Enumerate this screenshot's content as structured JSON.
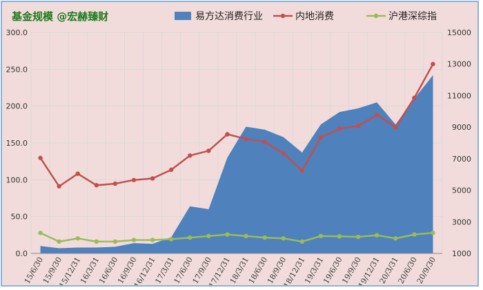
{
  "chart_data": {
    "type": "area",
    "title": "基金规模 @宏赫臻财",
    "x": [
      "15/6/30",
      "15/9/30",
      "15/12/31",
      "16/3/31",
      "16/6/30",
      "16/9/30",
      "16/12/31",
      "17/3/31",
      "17/6/30",
      "17/9/30",
      "17/12/31",
      "18/3/31",
      "18/6/30",
      "18/9/30",
      "18/12/31",
      "19/3/31",
      "19/6/30",
      "19/9/30",
      "19/12/31",
      "20/3/31",
      "20/6/30",
      "20/9/30"
    ],
    "y_left_ticks": [
      "0.0",
      "50.0",
      "100.0",
      "150.0",
      "200.0",
      "250.0",
      "300.0"
    ],
    "y_right_ticks": [
      "1000",
      "3000",
      "5000",
      "7000",
      "9000",
      "11000",
      "13000",
      "15000"
    ],
    "ylim_left": [
      0,
      300
    ],
    "ylim_right": [
      1000,
      15000
    ],
    "grid": true,
    "legend_position": "top",
    "series": [
      {
        "name": "易方达消费行业",
        "type": "area",
        "axis": "left",
        "color": "#4f81bd",
        "values": [
          10,
          7,
          8,
          8,
          9,
          14,
          13,
          22,
          64,
          60,
          130,
          172,
          168,
          158,
          137,
          175,
          192,
          197,
          205,
          175,
          210,
          242
        ]
      },
      {
        "name": "内地消费",
        "type": "line",
        "axis": "right",
        "color": "#c0504d",
        "values": [
          7050,
          5250,
          6050,
          5320,
          5420,
          5650,
          5750,
          6300,
          7200,
          7500,
          8550,
          8250,
          8070,
          7350,
          6250,
          8350,
          8900,
          9080,
          9770,
          9000,
          10850,
          13000
        ]
      },
      {
        "name": "沪港深综指",
        "type": "line",
        "axis": "right",
        "color": "#9bbb59",
        "values": [
          2300,
          1750,
          1950,
          1750,
          1750,
          1850,
          1850,
          1900,
          2000,
          2100,
          2200,
          2100,
          2000,
          1950,
          1750,
          2100,
          2080,
          2050,
          2150,
          1950,
          2200,
          2300
        ]
      }
    ]
  }
}
